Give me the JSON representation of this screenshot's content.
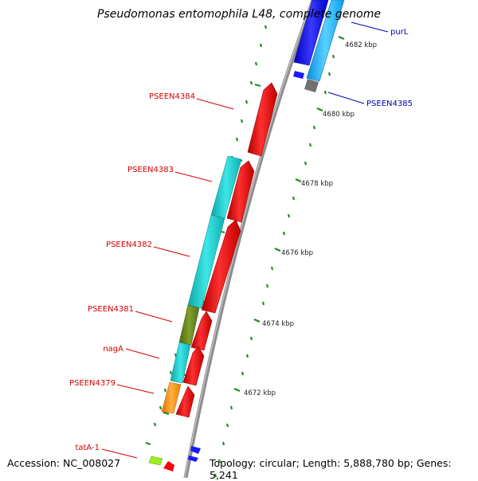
{
  "title": "Pseudomonas entomophila L48, complete genome",
  "footer": {
    "accession": "Accession: NC_008027",
    "summary": "Topology: circular; Length: 5,888,780 bp; Genes: 5,241"
  },
  "scale_labels": [
    "4682 kbp",
    "4680 kbp",
    "4678 kbp",
    "4676 kbp",
    "4674 kbp",
    "4672 kbp"
  ],
  "gene_labels": {
    "left": [
      "PSEEN4384",
      "PSEEN4383",
      "PSEEN4382",
      "PSEEN4381",
      "nagA",
      "PSEEN4379",
      "tatA-1"
    ],
    "right": [
      "purL",
      "PSEEN4385"
    ]
  },
  "colors": {
    "left_label": "#d40000",
    "right_label": "#0000bb",
    "backbone": "#8c8c8c",
    "forward_gene": "#ff0000",
    "reverse_gene_blue": "#1a1aff",
    "reverse_gene_lightblue": "#19b4ff",
    "cog_cyan": "#17cfcf",
    "cog_olive": "#6f8f1f",
    "cog_orange": "#ff9410",
    "cog_green": "#9cf020",
    "tick_green": "#228b22",
    "gray_feature": "#707070"
  }
}
